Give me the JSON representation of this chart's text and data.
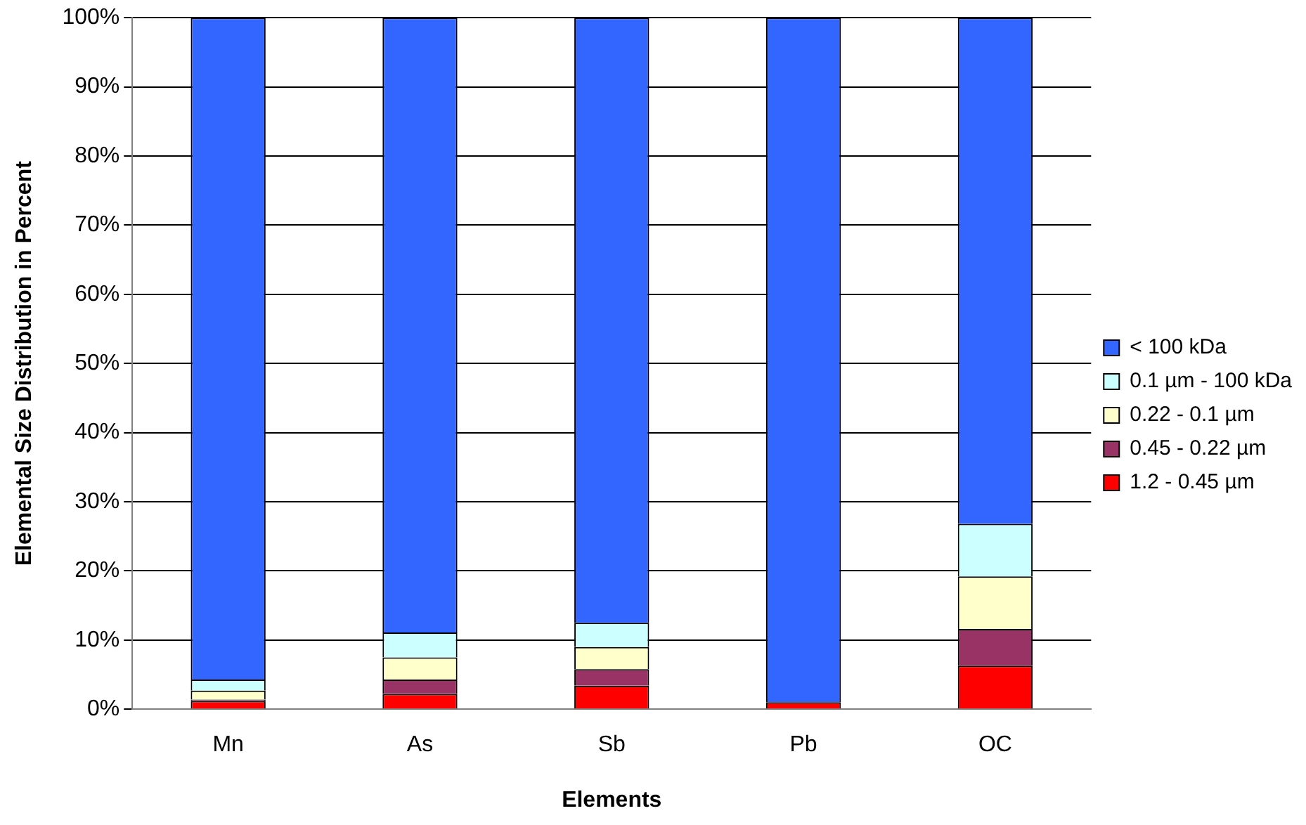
{
  "chart_data": {
    "type": "bar",
    "stacked": true,
    "xlabel": "Elements",
    "ylabel": "Elemental Size Distribution in Percent",
    "categories": [
      "Mn",
      "As",
      "Sb",
      "Pb",
      "OC"
    ],
    "series": [
      {
        "name": "1.2 - 0.45 µm",
        "color": "#ff0000",
        "values": [
          1.2,
          2.2,
          3.4,
          1.0,
          6.3
        ]
      },
      {
        "name": "0.45 - 0.22 µm",
        "color": "#993366",
        "values": [
          0.2,
          2.1,
          2.4,
          0,
          5.3
        ]
      },
      {
        "name": "0.22 - 0.1 µm",
        "color": "#ffffcc",
        "values": [
          1.3,
          3.2,
          3.2,
          0,
          7.6
        ]
      },
      {
        "name": "0.1 µm - 100 kDa",
        "color": "#ccffff",
        "values": [
          1.6,
          3.6,
          3.5,
          0,
          7.6
        ]
      },
      {
        "name": "< 100 kDa",
        "color": "#3366ff",
        "values": [
          95.7,
          88.9,
          87.5,
          99.0,
          73.2
        ]
      }
    ],
    "ylim": [
      0,
      100
    ],
    "yticks": [
      {
        "value": 0,
        "label": "0%"
      },
      {
        "value": 10,
        "label": "10%"
      },
      {
        "value": 20,
        "label": "20%"
      },
      {
        "value": 30,
        "label": "30%"
      },
      {
        "value": 40,
        "label": "40%"
      },
      {
        "value": 50,
        "label": "50%"
      },
      {
        "value": 60,
        "label": "60%"
      },
      {
        "value": 70,
        "label": "70%"
      },
      {
        "value": 80,
        "label": "80%"
      },
      {
        "value": 90,
        "label": "90%"
      },
      {
        "value": 100,
        "label": "100%"
      }
    ],
    "grid": "y",
    "legend": "right"
  }
}
